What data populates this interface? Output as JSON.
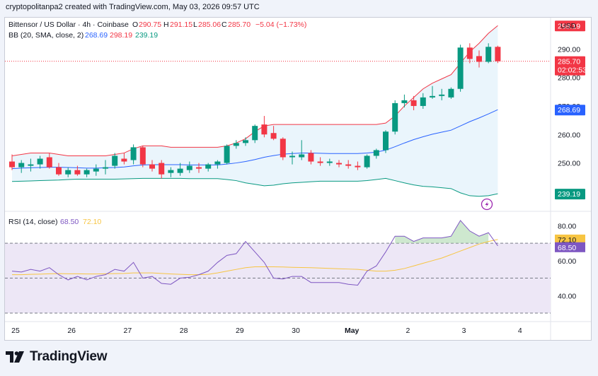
{
  "header": {
    "credit": "cryptopolitanpa2 created with TradingView.com, May 03, 2026 09:57 UTC"
  },
  "legend": {
    "symbol": "Bittensor / US Dollar · 4h · Coinbase",
    "o_label": "O",
    "o": "290.75",
    "h_label": "H",
    "h": "291.15",
    "l_label": "L",
    "l": "285.06",
    "c_label": "C",
    "c": "285.70",
    "change": "−5.04 (−1.73%)",
    "bb_label": "BB (20, SMA, close, 2)",
    "bb_basis": "268.69",
    "bb_upper": "298.19",
    "bb_lower": "239.19"
  },
  "rsi_legend": {
    "label": "RSI (14, close)",
    "rsi": "68.50",
    "ma": "72.10"
  },
  "price_axis": {
    "currency": "USD",
    "ticks": [
      "290.00",
      "280.00",
      "260.00",
      "250.00"
    ],
    "partial_ticks": [
      "298.19",
      "270.00"
    ],
    "badges": {
      "price": "285.70",
      "countdown": "02:02:53",
      "basis": "268.69",
      "lower": "239.19",
      "upper": "298.19"
    }
  },
  "rsi_axis": {
    "ticks": [
      "80.00",
      "60.00",
      "40.00"
    ],
    "badges": {
      "ma": "72.10",
      "rsi": "68.50"
    }
  },
  "time_axis": [
    "25",
    "26",
    "27",
    "28",
    "29",
    "30",
    "May",
    "2",
    "3",
    "4"
  ],
  "colors": {
    "up": "#089981",
    "down": "#f23645",
    "bb_basis": "#2962ff",
    "bb_upper": "#f23645",
    "bb_lower": "#089981",
    "bb_fill": "#e3f1fb",
    "rsi": "#7e57c2",
    "rsi_ma": "#f7c542",
    "rsi_band": "#ede7f6"
  },
  "footer": {
    "brand": "TradingView"
  },
  "chart_data": [
    {
      "type": "candlestick",
      "title": "Bittensor / US Dollar · 4h · Coinbase",
      "ylim": [
        236,
        300
      ],
      "candles": [
        {
          "o": 250.5,
          "h": 253.0,
          "l": 247.5,
          "c": 248.5
        },
        {
          "o": 248.5,
          "h": 251.0,
          "l": 246.5,
          "c": 250.0
        },
        {
          "o": 249.0,
          "h": 251.5,
          "l": 247.0,
          "c": 249.5
        },
        {
          "o": 249.5,
          "h": 252.5,
          "l": 248.0,
          "c": 251.5
        },
        {
          "o": 252.0,
          "h": 253.5,
          "l": 248.0,
          "c": 248.5
        },
        {
          "o": 248.5,
          "h": 250.0,
          "l": 245.5,
          "c": 246.0
        },
        {
          "o": 246.0,
          "h": 248.5,
          "l": 245.0,
          "c": 247.5
        },
        {
          "o": 247.5,
          "h": 249.0,
          "l": 245.5,
          "c": 246.0
        },
        {
          "o": 246.0,
          "h": 248.0,
          "l": 245.0,
          "c": 247.5
        },
        {
          "o": 247.0,
          "h": 249.5,
          "l": 245.5,
          "c": 248.0
        },
        {
          "o": 248.0,
          "h": 251.0,
          "l": 246.0,
          "c": 248.5
        },
        {
          "o": 249.0,
          "h": 253.5,
          "l": 248.0,
          "c": 252.5
        },
        {
          "o": 251.5,
          "h": 253.5,
          "l": 249.5,
          "c": 250.5
        },
        {
          "o": 251.0,
          "h": 256.5,
          "l": 249.5,
          "c": 255.5
        },
        {
          "o": 255.5,
          "h": 256.0,
          "l": 248.5,
          "c": 249.5
        },
        {
          "o": 249.5,
          "h": 251.0,
          "l": 247.0,
          "c": 248.0
        },
        {
          "o": 250.0,
          "h": 251.0,
          "l": 244.5,
          "c": 246.0
        },
        {
          "o": 246.5,
          "h": 248.5,
          "l": 245.0,
          "c": 247.5
        },
        {
          "o": 246.5,
          "h": 250.0,
          "l": 245.5,
          "c": 248.0
        },
        {
          "o": 247.5,
          "h": 250.5,
          "l": 246.5,
          "c": 249.0
        },
        {
          "o": 248.5,
          "h": 250.0,
          "l": 246.5,
          "c": 248.0
        },
        {
          "o": 248.0,
          "h": 250.0,
          "l": 247.0,
          "c": 249.5
        },
        {
          "o": 249.5,
          "h": 251.0,
          "l": 248.0,
          "c": 250.5
        },
        {
          "o": 250.0,
          "h": 256.5,
          "l": 249.5,
          "c": 256.0
        },
        {
          "o": 256.0,
          "h": 258.0,
          "l": 255.0,
          "c": 257.0
        },
        {
          "o": 257.0,
          "h": 259.0,
          "l": 256.0,
          "c": 258.0
        },
        {
          "o": 258.0,
          "h": 263.5,
          "l": 257.0,
          "c": 263.0
        },
        {
          "o": 263.5,
          "h": 266.5,
          "l": 259.0,
          "c": 260.0
        },
        {
          "o": 260.5,
          "h": 263.0,
          "l": 258.0,
          "c": 258.5
        },
        {
          "o": 258.5,
          "h": 259.0,
          "l": 251.0,
          "c": 252.0
        },
        {
          "o": 252.0,
          "h": 254.0,
          "l": 249.5,
          "c": 252.5
        },
        {
          "o": 252.0,
          "h": 258.0,
          "l": 251.0,
          "c": 253.0
        },
        {
          "o": 253.5,
          "h": 254.5,
          "l": 249.5,
          "c": 250.5
        },
        {
          "o": 250.5,
          "h": 252.0,
          "l": 249.0,
          "c": 250.0
        },
        {
          "o": 250.0,
          "h": 251.5,
          "l": 249.0,
          "c": 250.5
        },
        {
          "o": 250.0,
          "h": 251.0,
          "l": 248.5,
          "c": 249.5
        },
        {
          "o": 249.5,
          "h": 251.0,
          "l": 248.0,
          "c": 249.0
        },
        {
          "o": 249.0,
          "h": 250.5,
          "l": 247.5,
          "c": 248.5
        },
        {
          "o": 248.5,
          "h": 253.0,
          "l": 248.0,
          "c": 252.5
        },
        {
          "o": 252.5,
          "h": 255.0,
          "l": 251.5,
          "c": 254.5
        },
        {
          "o": 254.5,
          "h": 261.5,
          "l": 253.5,
          "c": 261.0
        },
        {
          "o": 261.0,
          "h": 272.0,
          "l": 260.0,
          "c": 271.0
        },
        {
          "o": 271.0,
          "h": 274.0,
          "l": 269.5,
          "c": 272.0
        },
        {
          "o": 272.0,
          "h": 273.5,
          "l": 268.5,
          "c": 270.0
        },
        {
          "o": 270.0,
          "h": 274.5,
          "l": 269.0,
          "c": 273.0
        },
        {
          "o": 273.0,
          "h": 277.0,
          "l": 272.5,
          "c": 273.5
        },
        {
          "o": 273.5,
          "h": 276.0,
          "l": 272.0,
          "c": 274.0
        },
        {
          "o": 273.0,
          "h": 276.5,
          "l": 272.5,
          "c": 276.0
        },
        {
          "o": 276.0,
          "h": 291.5,
          "l": 275.0,
          "c": 290.5
        },
        {
          "o": 290.5,
          "h": 292.0,
          "l": 285.0,
          "c": 286.5
        },
        {
          "o": 287.5,
          "h": 289.5,
          "l": 283.5,
          "c": 285.5
        },
        {
          "o": 285.5,
          "h": 292.0,
          "l": 285.0,
          "c": 290.75
        },
        {
          "o": 290.75,
          "h": 291.15,
          "l": 285.06,
          "c": 285.7
        }
      ],
      "bb_upper": [
        252.5,
        253.0,
        253.5,
        253.5,
        253.5,
        253.0,
        252.5,
        252.5,
        252.5,
        252.5,
        252.5,
        253.0,
        253.5,
        255.0,
        256.0,
        256.0,
        256.0,
        255.5,
        255.5,
        255.5,
        255.5,
        255.5,
        255.5,
        256.0,
        257.0,
        258.5,
        261.0,
        263.0,
        263.5,
        263.5,
        263.5,
        263.5,
        263.5,
        263.5,
        263.5,
        263.5,
        263.5,
        263.5,
        263.5,
        263.5,
        264.0,
        266.5,
        270.0,
        273.0,
        276.0,
        278.0,
        279.5,
        281.0,
        285.0,
        289.0,
        292.0,
        295.5,
        298.19
      ],
      "bb_basis": [
        248.0,
        248.2,
        248.3,
        248.4,
        248.5,
        248.5,
        248.4,
        248.3,
        248.2,
        248.2,
        248.3,
        248.4,
        248.6,
        249.0,
        249.3,
        249.4,
        249.4,
        249.4,
        249.4,
        249.3,
        249.3,
        249.3,
        249.3,
        249.6,
        250.0,
        250.5,
        251.2,
        252.0,
        252.6,
        253.1,
        253.3,
        253.5,
        253.5,
        253.4,
        253.3,
        253.3,
        253.3,
        253.3,
        253.5,
        253.8,
        254.5,
        255.7,
        257.0,
        258.2,
        259.2,
        260.1,
        260.8,
        261.5,
        263.0,
        264.5,
        265.8,
        267.2,
        268.69
      ],
      "bb_lower": [
        243.5,
        243.6,
        243.7,
        243.8,
        243.9,
        244.0,
        244.2,
        244.3,
        244.3,
        244.3,
        244.3,
        244.3,
        244.4,
        244.5,
        244.6,
        244.6,
        244.6,
        244.6,
        244.6,
        244.5,
        244.5,
        244.5,
        244.5,
        244.2,
        243.8,
        243.0,
        242.5,
        242.0,
        242.2,
        242.7,
        243.0,
        243.2,
        243.4,
        243.6,
        243.6,
        243.6,
        243.6,
        243.6,
        243.8,
        244.2,
        244.6,
        243.8,
        243.0,
        242.3,
        241.8,
        241.6,
        241.3,
        241.0,
        239.5,
        238.5,
        238.3,
        238.5,
        239.19
      ]
    },
    {
      "type": "line",
      "title": "RSI (14, close)",
      "ylim": [
        30,
        85
      ],
      "series": [
        {
          "name": "RSI",
          "values": [
            54,
            53.5,
            55,
            54,
            56,
            52,
            49,
            51,
            49,
            51,
            52,
            55,
            54,
            59,
            50,
            51,
            47,
            46.5,
            50,
            50.5,
            52,
            54,
            59,
            63,
            64,
            71,
            65,
            59,
            50,
            49.5,
            51,
            51,
            47.5,
            47.5,
            47.5,
            47.5,
            46.5,
            46,
            54,
            57,
            65,
            74,
            74,
            71,
            73,
            73,
            73,
            74,
            83,
            77,
            74,
            76,
            68.5
          ]
        },
        {
          "name": "MA",
          "values": [
            52,
            52,
            52.2,
            52.3,
            52.5,
            52.6,
            52.5,
            52.5,
            52.4,
            52.4,
            52.5,
            52.6,
            52.7,
            53,
            53,
            53,
            52.7,
            52.4,
            52.2,
            52,
            52,
            52.2,
            53,
            54,
            55,
            56,
            56.5,
            56.5,
            56.5,
            56.4,
            56.2,
            56.1,
            56,
            55.8,
            55.6,
            55.4,
            55.2,
            55,
            54.5,
            54,
            54,
            54.5,
            55.5,
            57,
            58.5,
            60,
            61.5,
            63.5,
            65.5,
            67.5,
            69.5,
            71,
            72.1
          ]
        }
      ],
      "bands": {
        "upper": 70,
        "middle": 50,
        "lower": 30
      }
    }
  ]
}
